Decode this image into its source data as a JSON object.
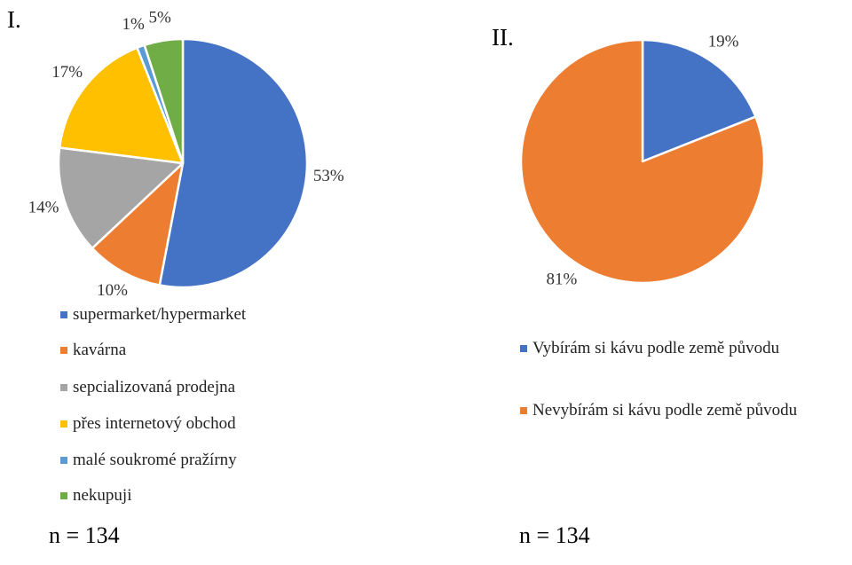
{
  "chart_data": [
    {
      "type": "pie",
      "title": "I.",
      "categories": [
        "supermarket/hypermarket",
        "kavárna",
        "sepcializovaná prodejna",
        "přes internetový obchod",
        "malé soukromé pražírny",
        "nekupuji"
      ],
      "values": [
        53,
        10,
        14,
        17,
        1,
        5
      ],
      "value_labels": [
        "53%",
        "10%",
        "14%",
        "17%",
        "1%",
        "5%"
      ],
      "colors": [
        "#4472c4",
        "#ed7d31",
        "#a5a5a5",
        "#ffc000",
        "#5b9bd5",
        "#70ad47"
      ],
      "annotation": "n = 134",
      "legend": "bottom"
    },
    {
      "type": "pie",
      "title": "II.",
      "categories": [
        "Vybírám si kávu podle země původu",
        "Nevybírám si kávu podle země původu"
      ],
      "values": [
        19,
        81
      ],
      "value_labels": [
        "19%",
        "81%"
      ],
      "colors": [
        "#4472c4",
        "#ed7d31"
      ],
      "annotation": "n = 134",
      "legend": "bottom"
    }
  ]
}
